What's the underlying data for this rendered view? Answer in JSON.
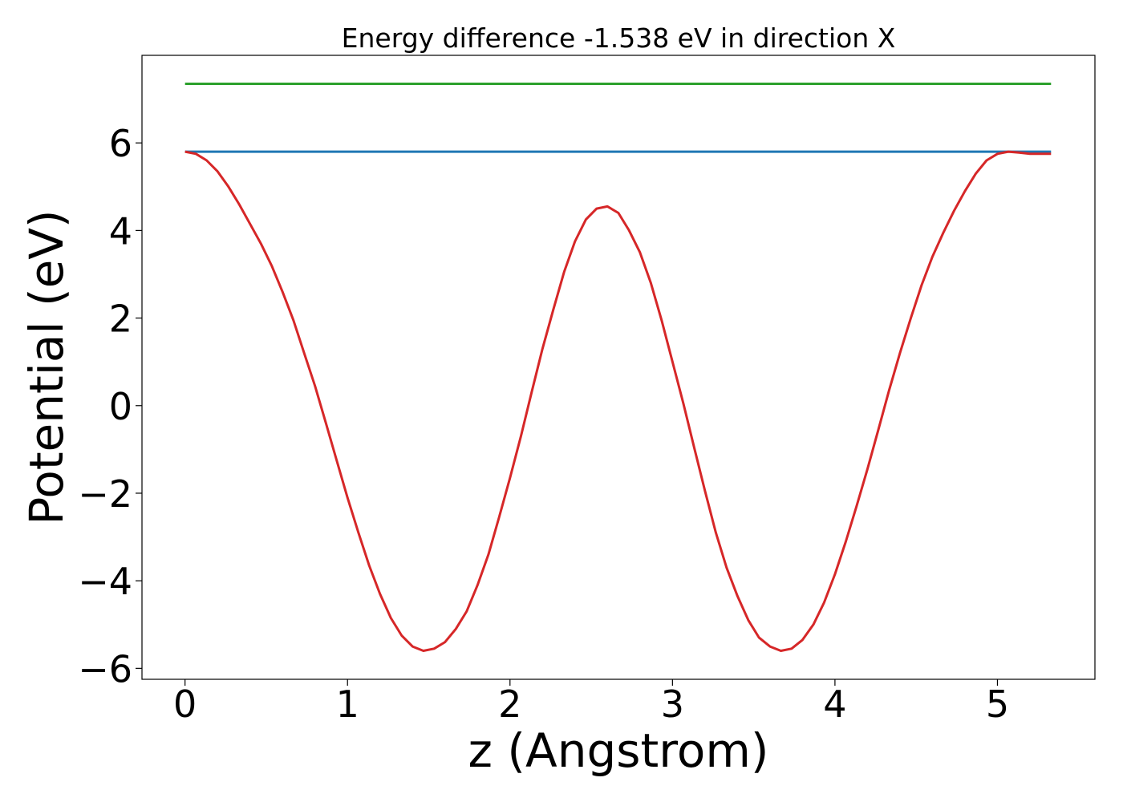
{
  "chart_data": {
    "type": "line",
    "title": "Energy difference -1.538 eV in direction X",
    "xlabel": "z (Angstrom)",
    "ylabel": "Potential (eV)",
    "xlim": [
      -0.265,
      5.6
    ],
    "ylim": [
      -6.25,
      8.0
    ],
    "xticks": [
      0,
      1,
      2,
      3,
      4,
      5
    ],
    "yticks": [
      -6,
      -4,
      -2,
      0,
      2,
      4,
      6
    ],
    "xtick_labels": [
      "0",
      "1",
      "2",
      "3",
      "4",
      "5"
    ],
    "ytick_labels": [
      "−6",
      "−4",
      "−2",
      "0",
      "2",
      "4",
      "6"
    ],
    "grid": false,
    "legend": "none",
    "series": [
      {
        "color": "#2ca02c",
        "x": [
          0,
          5.33
        ],
        "y": [
          7.35,
          7.35
        ]
      },
      {
        "color": "#1f77b4",
        "x": [
          0,
          5.33
        ],
        "y": [
          5.8,
          5.8
        ]
      },
      {
        "color": "#d62728",
        "x": [
          0,
          0.067,
          0.133,
          0.2,
          0.267,
          0.333,
          0.4,
          0.467,
          0.533,
          0.6,
          0.667,
          0.733,
          0.8,
          0.867,
          0.933,
          1.0,
          1.067,
          1.133,
          1.2,
          1.267,
          1.333,
          1.4,
          1.467,
          1.533,
          1.6,
          1.667,
          1.733,
          1.8,
          1.867,
          1.933,
          2.0,
          2.067,
          2.133,
          2.2,
          2.267,
          2.333,
          2.4,
          2.467,
          2.533,
          2.6,
          2.667,
          2.733,
          2.8,
          2.867,
          2.933,
          3.0,
          3.067,
          3.133,
          3.2,
          3.267,
          3.333,
          3.4,
          3.467,
          3.533,
          3.6,
          3.667,
          3.733,
          3.8,
          3.867,
          3.933,
          4.0,
          4.067,
          4.133,
          4.2,
          4.267,
          4.333,
          4.4,
          4.467,
          4.533,
          4.6,
          4.667,
          4.733,
          4.8,
          4.867,
          4.933,
          5.0,
          5.067,
          5.133,
          5.2,
          5.267,
          5.33
        ],
        "y": [
          5.8,
          5.75,
          5.6,
          5.35,
          5.0,
          4.6,
          4.15,
          3.7,
          3.2,
          2.6,
          1.95,
          1.2,
          0.45,
          -0.4,
          -1.25,
          -2.1,
          -2.9,
          -3.65,
          -4.3,
          -4.85,
          -5.25,
          -5.5,
          -5.6,
          -5.55,
          -5.4,
          -5.1,
          -4.7,
          -4.1,
          -3.4,
          -2.55,
          -1.65,
          -0.7,
          0.3,
          1.3,
          2.2,
          3.05,
          3.75,
          4.25,
          4.5,
          4.55,
          4.4,
          4.0,
          3.5,
          2.8,
          1.95,
          1.0,
          0.05,
          -0.95,
          -1.95,
          -2.9,
          -3.7,
          -4.35,
          -4.9,
          -5.3,
          -5.5,
          -5.6,
          -5.55,
          -5.35,
          -5.0,
          -4.5,
          -3.85,
          -3.1,
          -2.3,
          -1.45,
          -0.55,
          0.35,
          1.2,
          2.0,
          2.75,
          3.4,
          3.95,
          4.45,
          4.9,
          5.3,
          5.6,
          5.75,
          5.8,
          5.78,
          5.75,
          5.75,
          5.75
        ]
      }
    ]
  }
}
